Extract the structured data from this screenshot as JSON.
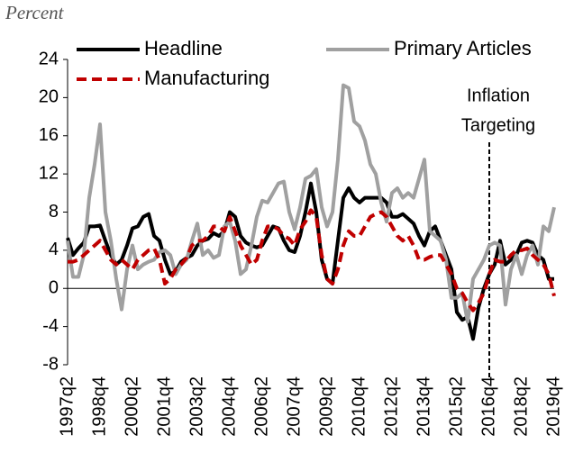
{
  "chart_data": {
    "type": "line",
    "ylabel": "Percent",
    "categories": [
      "1997q2",
      null,
      null,
      null,
      null,
      null,
      "1998q4",
      null,
      null,
      null,
      null,
      null,
      "2000q2",
      null,
      null,
      null,
      null,
      null,
      "2001q4",
      null,
      null,
      null,
      null,
      null,
      "2003q2",
      null,
      null,
      null,
      null,
      null,
      "2004q4",
      null,
      null,
      null,
      null,
      null,
      "2006q2",
      null,
      null,
      null,
      null,
      null,
      "2007q4",
      null,
      null,
      null,
      null,
      null,
      "2009q2",
      null,
      null,
      null,
      null,
      null,
      "2010q4",
      null,
      null,
      null,
      null,
      null,
      "2012q2",
      null,
      null,
      null,
      null,
      null,
      "2013q4",
      null,
      null,
      null,
      null,
      null,
      "2015q2",
      null,
      null,
      null,
      null,
      null,
      "2016q4",
      null,
      null,
      null,
      null,
      null,
      "2018q2",
      null,
      null,
      null,
      null,
      null,
      "2019q4"
    ],
    "series": [
      {
        "name": "Headline",
        "color": "#000000",
        "style": "solid",
        "values": [
          5.3,
          3.5,
          4.2,
          4.8,
          6.5,
          6.5,
          6.6,
          5,
          3.5,
          2.5,
          3,
          4.5,
          6.3,
          6.5,
          7.5,
          7.8,
          5.5,
          5,
          3,
          1.5,
          1.8,
          2.8,
          3.2,
          3.5,
          4.5,
          5,
          5.2,
          5.8,
          5.5,
          6,
          8,
          7.5,
          5.5,
          4.8,
          4.5,
          4.3,
          4.5,
          5.5,
          6.5,
          6.3,
          5,
          4,
          3.8,
          5.5,
          8,
          11,
          8,
          3,
          1,
          0.5,
          5,
          9.5,
          10.5,
          9.5,
          9,
          9.5,
          9.5,
          9.5,
          9.5,
          9,
          7.5,
          7.5,
          7.8,
          7.3,
          6.8,
          5.5,
          4.5,
          6,
          6.5,
          5,
          3.5,
          2,
          -2.5,
          -3.3,
          -3,
          -5.3,
          -2,
          0,
          1.5,
          2.5,
          5,
          2.5,
          3,
          3.5,
          4.8,
          5,
          4.8,
          3.5,
          3,
          1,
          1
        ]
      },
      {
        "name": "Primary Articles",
        "color": "#a0a0a0",
        "style": "solid",
        "values": [
          5,
          1.2,
          1.2,
          3.5,
          9.5,
          13,
          17.2,
          8,
          5,
          1,
          -2.2,
          2,
          4.5,
          2,
          2.5,
          2.8,
          3,
          3.8,
          4,
          3.5,
          1.5,
          2.5,
          3,
          5,
          6.8,
          3.5,
          4,
          3.2,
          3.5,
          6.5,
          7,
          5,
          1.5,
          2,
          4.5,
          7.5,
          9.2,
          9,
          10,
          11,
          11.2,
          8,
          6.2,
          8.5,
          11.5,
          11.8,
          12.5,
          8.5,
          6.5,
          8,
          13.5,
          21.3,
          21,
          17.5,
          17,
          15.5,
          13,
          12,
          9,
          7,
          10,
          10.5,
          9.5,
          10,
          9.5,
          11.5,
          13.5,
          6,
          5.5,
          5,
          3,
          -1,
          -1,
          -0.5,
          -3.5,
          1,
          2,
          3,
          4.5,
          4.8,
          4.5,
          -1.7,
          2,
          3.5,
          1.5,
          3.5,
          4.5,
          2.5,
          6.5,
          6,
          8.5
        ]
      },
      {
        "name": "Manufacturing",
        "color": "#c00000",
        "style": "dashed",
        "values": [
          2.8,
          2.8,
          3,
          3.5,
          4,
          4.5,
          5,
          4,
          3,
          2.5,
          3,
          2.5,
          2,
          3,
          3.5,
          4,
          4.2,
          3,
          0.5,
          1,
          2,
          2.5,
          3.2,
          4.5,
          5,
          5,
          5.5,
          6.5,
          6.5,
          6,
          7.5,
          6,
          4.5,
          3.5,
          2.5,
          3,
          5,
          6.5,
          6.5,
          6.2,
          5.5,
          5.2,
          4.5,
          6.2,
          7,
          8.2,
          7.5,
          3.5,
          1,
          0.5,
          2,
          4.5,
          6,
          5.5,
          5.5,
          6.5,
          7.5,
          7.8,
          8,
          7.5,
          6.5,
          5.5,
          5,
          5.5,
          4.5,
          3,
          3,
          3.3,
          3.5,
          3.5,
          2.5,
          1.5,
          0,
          -0.5,
          -1.5,
          -2.3,
          -1.5,
          -0.5,
          1.5,
          3,
          2.8,
          2.8,
          3.5,
          4,
          4,
          4.2,
          3.5,
          3,
          2.5,
          1.5,
          -0.8
        ]
      }
    ],
    "ylim": [
      -8,
      24
    ],
    "yticks": [
      -8,
      -4,
      0,
      4,
      8,
      12,
      16,
      20,
      24
    ],
    "annotation": {
      "text": [
        "Inflation",
        "Targeting"
      ],
      "x": "2016q4"
    }
  }
}
